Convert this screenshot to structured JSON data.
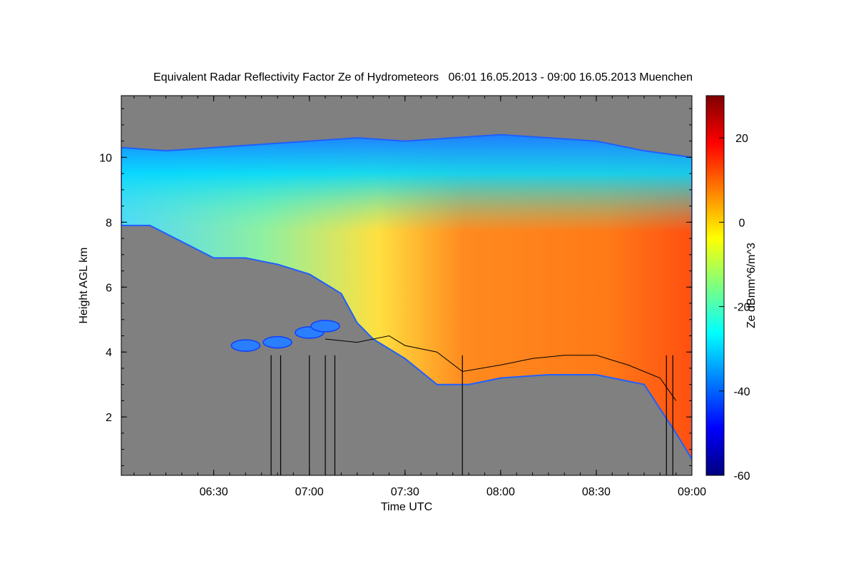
{
  "chart_data": {
    "type": "heatmap",
    "title": "Equivalent Radar Reflectivity Factor Ze of Hydrometeors   06:01 16.05.2013 - 09:00 16.05.2013 Muenchen",
    "xlabel": "Time UTC",
    "ylabel": "Height AGL km",
    "x_range": [
      "06:01",
      "09:00"
    ],
    "x_ticks": [
      "06:30",
      "07:00",
      "07:30",
      "08:00",
      "08:30",
      "09:00"
    ],
    "ylim": [
      0.2,
      11.9
    ],
    "y_ticks": [
      2,
      4,
      6,
      8,
      10
    ],
    "colorbar": {
      "label": "Ze dBmm^6/m^3",
      "range": [
        -60,
        30
      ],
      "ticks": [
        20,
        0,
        -20,
        -40,
        -60
      ],
      "colormap": "jet"
    },
    "background_color": "#808080",
    "echo_top_km": [
      {
        "time": "06:01",
        "value": 10.3
      },
      {
        "time": "06:15",
        "value": 10.2
      },
      {
        "time": "06:30",
        "value": 10.3
      },
      {
        "time": "06:45",
        "value": 10.4
      },
      {
        "time": "07:00",
        "value": 10.5
      },
      {
        "time": "07:15",
        "value": 10.6
      },
      {
        "time": "07:30",
        "value": 10.5
      },
      {
        "time": "07:45",
        "value": 10.6
      },
      {
        "time": "08:00",
        "value": 10.7
      },
      {
        "time": "08:15",
        "value": 10.6
      },
      {
        "time": "08:30",
        "value": 10.5
      },
      {
        "time": "08:45",
        "value": 10.2
      },
      {
        "time": "09:00",
        "value": 10.0
      }
    ],
    "cloud_base_km": [
      {
        "time": "06:01",
        "value": 7.9
      },
      {
        "time": "06:10",
        "value": 7.9
      },
      {
        "time": "06:20",
        "value": 7.4
      },
      {
        "time": "06:30",
        "value": 6.9
      },
      {
        "time": "06:40",
        "value": 6.9
      },
      {
        "time": "06:50",
        "value": 6.7
      },
      {
        "time": "07:00",
        "value": 6.4
      },
      {
        "time": "07:10",
        "value": 5.8
      },
      {
        "time": "07:15",
        "value": 4.9
      },
      {
        "time": "07:20",
        "value": 4.4
      },
      {
        "time": "07:30",
        "value": 3.8
      },
      {
        "time": "07:40",
        "value": 3.0
      },
      {
        "time": "07:50",
        "value": 3.0
      },
      {
        "time": "08:00",
        "value": 3.2
      },
      {
        "time": "08:15",
        "value": 3.3
      },
      {
        "time": "08:30",
        "value": 3.3
      },
      {
        "time": "08:45",
        "value": 3.0
      },
      {
        "time": "08:55",
        "value": 1.5
      },
      {
        "time": "09:00",
        "value": 0.7
      }
    ],
    "melting_layer_line_km": [
      {
        "time": "07:05",
        "value": 4.4
      },
      {
        "time": "07:15",
        "value": 4.3
      },
      {
        "time": "07:25",
        "value": 4.5
      },
      {
        "time": "07:30",
        "value": 4.2
      },
      {
        "time": "07:40",
        "value": 4.0
      },
      {
        "time": "07:48",
        "value": 3.4
      },
      {
        "time": "08:00",
        "value": 3.6
      },
      {
        "time": "08:10",
        "value": 3.8
      },
      {
        "time": "08:20",
        "value": 3.9
      },
      {
        "time": "08:30",
        "value": 3.9
      },
      {
        "time": "08:40",
        "value": 3.6
      },
      {
        "time": "08:50",
        "value": 3.2
      },
      {
        "time": "08:55",
        "value": 2.5
      }
    ],
    "isolated_echo_km": [
      {
        "time": "06:40",
        "value": 4.2
      },
      {
        "time": "06:50",
        "value": 4.3
      },
      {
        "time": "07:00",
        "value": 4.6
      },
      {
        "time": "07:05",
        "value": 4.8
      }
    ],
    "vertical_lines_time": [
      "06:48",
      "06:51",
      "07:00",
      "07:05",
      "07:08",
      "07:48",
      "08:52",
      "08:54"
    ]
  }
}
